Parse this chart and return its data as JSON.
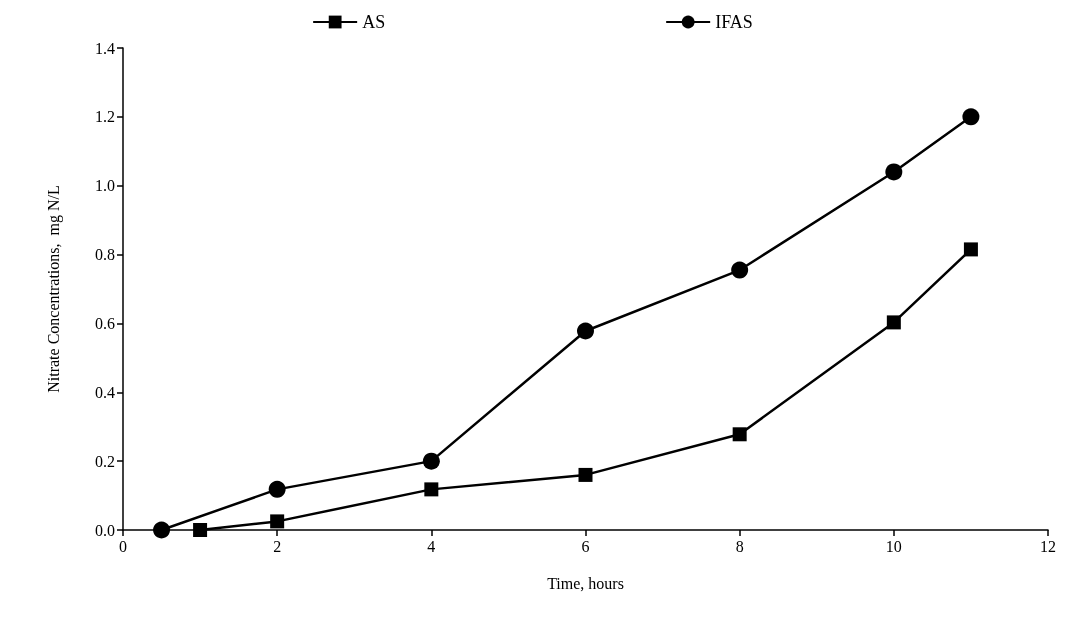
{
  "chart_data": {
    "type": "line",
    "xlabel": "Time, hours",
    "ylabel": "Nitrate Concentrations,  mg N/L",
    "xlim": [
      0,
      12
    ],
    "xticks": [
      0,
      2,
      4,
      6,
      8,
      10,
      12
    ],
    "ylim": [
      0,
      1.4
    ],
    "yticks": [
      {
        "value": 0,
        "label": "0.0"
      },
      {
        "value": 0.2,
        "label": "0.2"
      },
      {
        "value": 0.4,
        "label": "0.4"
      },
      {
        "value": 0.6,
        "label": "0.6"
      },
      {
        "value": 0.8,
        "label": "0.8"
      },
      {
        "value": 1,
        "label": "1.0"
      },
      {
        "value": 1.2,
        "label": "1.2"
      },
      {
        "value": 1.4,
        "label": "1.4"
      }
    ],
    "grid": false,
    "legend": "top",
    "line_style": "solid",
    "series": [
      {
        "name": "AS",
        "color": "#000000",
        "marker": "square",
        "x": [
          1,
          2,
          4,
          6,
          8,
          10,
          11
        ],
        "values": [
          0,
          0.025,
          0.118,
          0.16,
          0.278,
          0.603,
          0.815
        ]
      },
      {
        "name": "IFAS",
        "color": "#000000",
        "marker": "circle",
        "x": [
          0.5,
          2,
          4,
          6,
          8,
          10,
          11
        ],
        "values": [
          0,
          0.118,
          0.2,
          0.578,
          0.755,
          1.04,
          1.2
        ]
      }
    ]
  }
}
